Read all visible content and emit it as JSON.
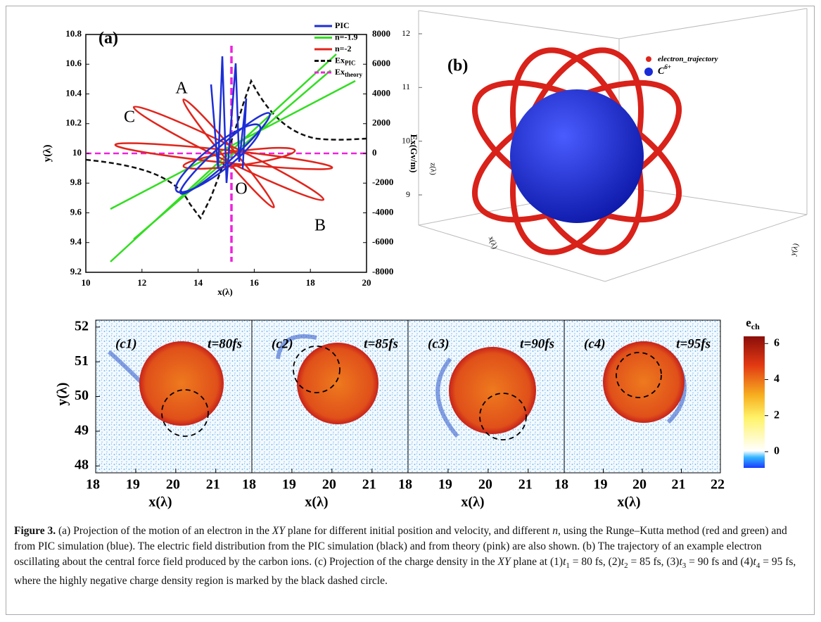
{
  "panel_a": {
    "label": "(a)",
    "xlabel": "x(λ)",
    "ylabel": "y(λ)",
    "y2label": "Ex(Gv/m)",
    "xlim": [
      10,
      20
    ],
    "xticks": [
      10,
      12,
      14,
      16,
      18,
      20
    ],
    "ylim": [
      9.2,
      10.8
    ],
    "yticks": [
      9.2,
      9.4,
      9.6,
      9.8,
      10,
      10.2,
      10.4,
      10.6,
      10.8
    ],
    "y2lim": [
      -8000,
      8000
    ],
    "y2ticks": [
      -8000,
      -6000,
      -4000,
      -2000,
      0,
      2000,
      4000,
      6000,
      8000
    ],
    "legend": [
      {
        "name": "PIC",
        "color": "#1c2ed6",
        "dashed": false
      },
      {
        "name": "n=-1.9",
        "color": "#33dd22",
        "dashed": false
      },
      {
        "name": "n=-2",
        "color": "#e0251c",
        "dashed": false
      },
      {
        "name": "Ex",
        "subscript": "PIC",
        "color": "#111111",
        "dashed": true
      },
      {
        "name": "Ex",
        "subscript": "theory",
        "color": "#ee22dd",
        "dashed": true
      }
    ],
    "annotations": [
      "A",
      "C",
      "O",
      "B"
    ]
  },
  "panel_b": {
    "label": "(b)",
    "xlabel": "x(λ)",
    "ylabel": "y(λ)",
    "zlabel": "z(λ)",
    "zlim": [
      9,
      12
    ],
    "zticks": [
      9,
      10,
      11,
      12
    ],
    "legend": [
      {
        "name": "electron_trajectory",
        "color": "#e0251c"
      },
      {
        "name": "C",
        "superscript": "6+",
        "color": "#1a2bd8"
      }
    ]
  },
  "panel_c": {
    "ylabel": "y(λ)",
    "xlabel": "x(λ)",
    "ylim": [
      47.8,
      52.2
    ],
    "yticks": [
      48,
      49,
      50,
      51,
      52
    ],
    "panels": [
      {
        "label": "(c1)",
        "time": "t=80fs",
        "xlim": [
          18,
          21.9
        ],
        "xticks": [
          18,
          19,
          20,
          21
        ]
      },
      {
        "label": "(c2)",
        "time": "t=85fs",
        "xlim": [
          18,
          21.9
        ],
        "xticks": [
          18,
          19,
          20,
          21
        ]
      },
      {
        "label": "(c3)",
        "time": "t=90fs",
        "xlim": [
          18,
          21.9
        ],
        "xticks": [
          18,
          19,
          20,
          21
        ]
      },
      {
        "label": "(c4)",
        "time": "t=95fs",
        "xlim": [
          18,
          22
        ],
        "xticks": [
          18,
          19,
          20,
          21,
          22
        ]
      }
    ],
    "colorbar": {
      "title": "e",
      "subscript": "ch",
      "lim": [
        -0.9,
        6.4
      ],
      "ticks": [
        0,
        2,
        4,
        6
      ]
    }
  },
  "caption": {
    "runs": [
      {
        "text": "Figure 3.",
        "style": "bold"
      },
      {
        "text": "  (a) Projection of the motion of an electron in the ",
        "style": "normal"
      },
      {
        "text": "XY",
        "style": "italic"
      },
      {
        "text": " plane for different initial position and velocity, and different ",
        "style": "normal"
      },
      {
        "text": "n",
        "style": "italic"
      },
      {
        "text": ", using the Runge–Kutta method (red and green) and from PIC simulation (blue). The electric field distribution from the PIC simulation (black) and from theory (pink) are also shown. (b) The trajectory of an example electron oscillating about the central force field produced by the carbon ions. (c) Projection of the charge density in the ",
        "style": "normal"
      },
      {
        "text": "XY",
        "style": "italic"
      },
      {
        "text": " plane at (1)",
        "style": "normal"
      },
      {
        "text": "t",
        "style": "italic"
      },
      {
        "text": "1",
        "style": "sub"
      },
      {
        "text": " = 80 fs, (2)",
        "style": "normal"
      },
      {
        "text": "t",
        "style": "italic"
      },
      {
        "text": "2",
        "style": "sub"
      },
      {
        "text": " = 85 fs, (3)",
        "style": "normal"
      },
      {
        "text": "t",
        "style": "italic"
      },
      {
        "text": "3",
        "style": "sub"
      },
      {
        "text": " = 90 fs and (4)",
        "style": "normal"
      },
      {
        "text": "t",
        "style": "italic"
      },
      {
        "text": "4",
        "style": "sub"
      },
      {
        "text": " = 95 fs, where the highly negative charge density region is marked by the black dashed circle.",
        "style": "normal"
      }
    ]
  }
}
